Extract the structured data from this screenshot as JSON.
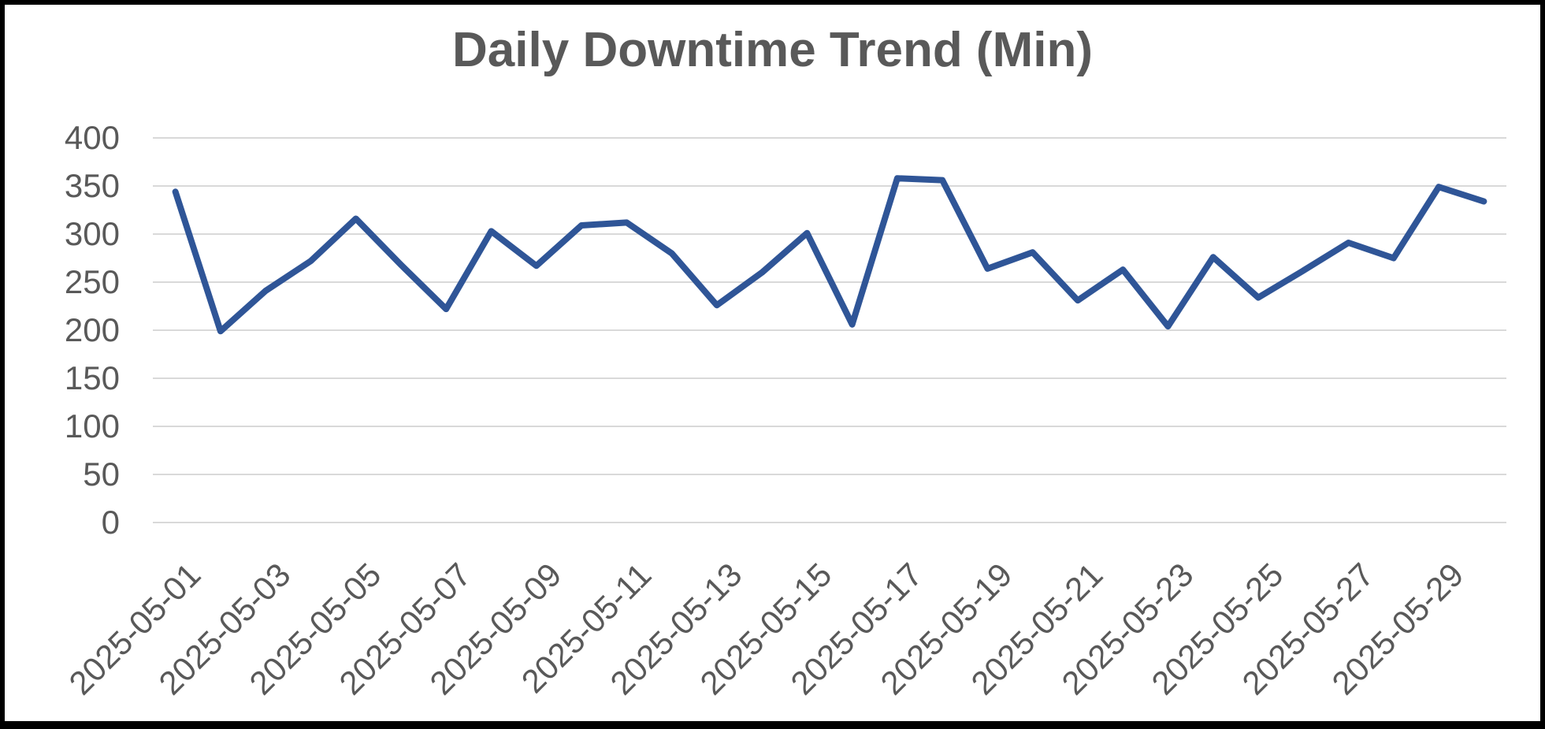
{
  "title": "Daily Downtime Trend (Min)",
  "colors": {
    "line": "#2F5597",
    "grid": "#D9D9D9",
    "text": "#595959",
    "background": "#FFFFFF",
    "frame": "#000000"
  },
  "chart_data": {
    "type": "line",
    "title": "Daily Downtime Trend (Min)",
    "x": [
      "2025-05-01",
      "2025-05-02",
      "2025-05-03",
      "2025-05-04",
      "2025-05-05",
      "2025-05-06",
      "2025-05-07",
      "2025-05-08",
      "2025-05-09",
      "2025-05-10",
      "2025-05-11",
      "2025-05-12",
      "2025-05-13",
      "2025-05-14",
      "2025-05-15",
      "2025-05-16",
      "2025-05-17",
      "2025-05-18",
      "2025-05-19",
      "2025-05-20",
      "2025-05-21",
      "2025-05-22",
      "2025-05-23",
      "2025-05-24",
      "2025-05-25",
      "2025-05-26",
      "2025-05-27",
      "2025-05-28",
      "2025-05-29",
      "2025-05-30"
    ],
    "values": [
      344,
      199,
      241,
      272,
      316,
      268,
      222,
      303,
      267,
      309,
      312,
      280,
      226,
      260,
      301,
      206,
      358,
      356,
      264,
      281,
      231,
      263,
      204,
      276,
      234,
      262,
      291,
      275,
      349,
      334
    ],
    "x_tick_labels": [
      "2025-05-01",
      "2025-05-03",
      "2025-05-05",
      "2025-05-07",
      "2025-05-09",
      "2025-05-11",
      "2025-05-13",
      "2025-05-15",
      "2025-05-17",
      "2025-05-19",
      "2025-05-21",
      "2025-05-23",
      "2025-05-25",
      "2025-05-27",
      "2025-05-29"
    ],
    "y_tick_labels": [
      "0",
      "50",
      "100",
      "150",
      "200",
      "250",
      "300",
      "350",
      "400"
    ],
    "y_ticks": [
      0,
      50,
      100,
      150,
      200,
      250,
      300,
      350,
      400
    ],
    "ylim": [
      0,
      400
    ],
    "grid": "horizontal",
    "legend": "none",
    "x_label_rotation": -45,
    "line_width": 8
  }
}
